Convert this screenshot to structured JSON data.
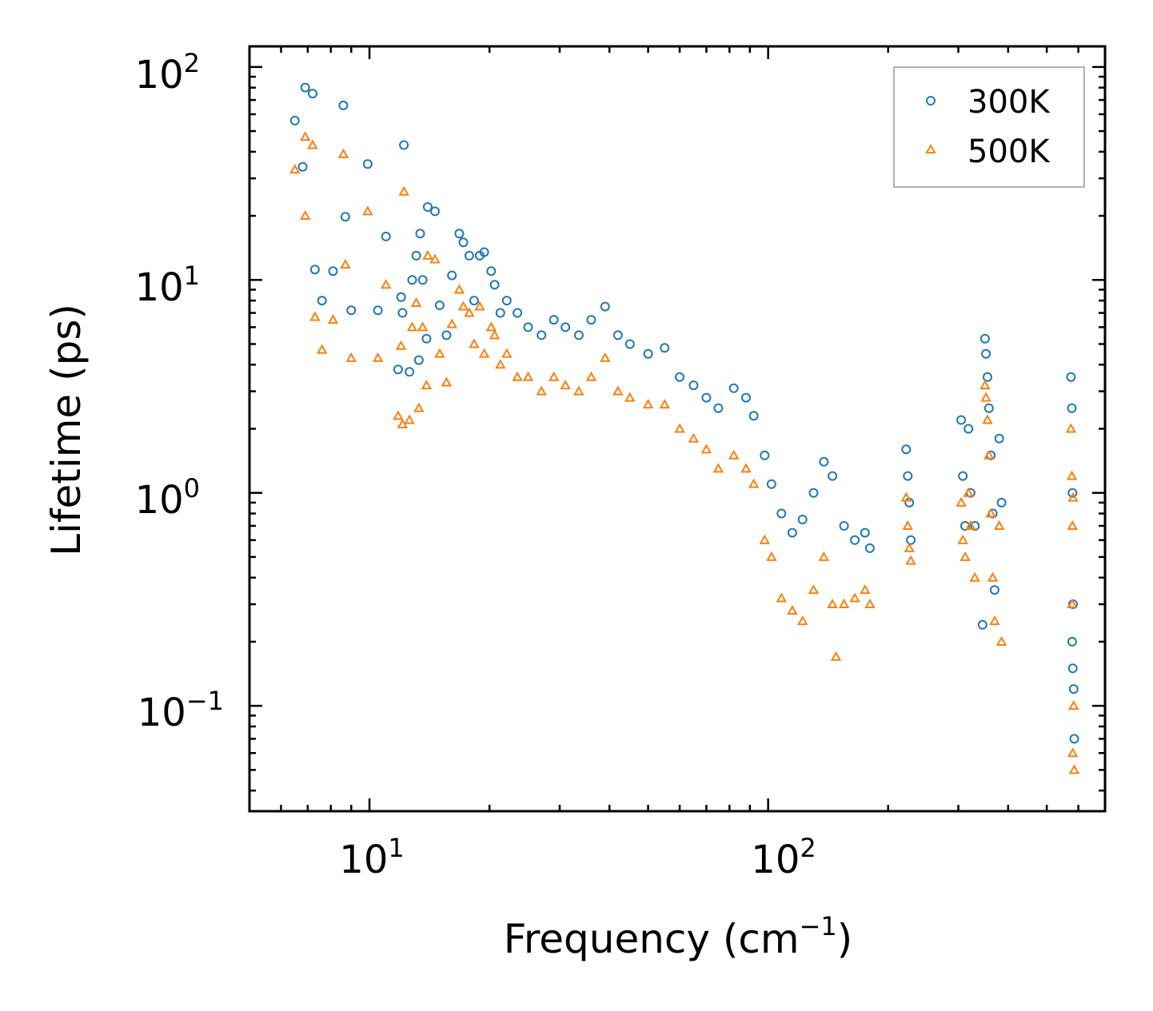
{
  "chart_data": {
    "type": "scatter",
    "xscale": "log",
    "yscale": "log",
    "xlabel_base": "Frequency (cm",
    "xlabel_sup": "−1",
    "xlabel_close": ")",
    "ylabel": "Lifetime (ps)",
    "xlim": [
      5,
      700
    ],
    "ylim": [
      0.032,
      125
    ],
    "xticks": [
      {
        "value": 10,
        "base": "10",
        "exp": "1"
      },
      {
        "value": 100,
        "base": "10",
        "exp": "2"
      }
    ],
    "yticks": [
      {
        "value": 100,
        "base": "10",
        "exp": "2"
      },
      {
        "value": 10,
        "base": "10",
        "exp": "1"
      },
      {
        "value": 1,
        "base": "10",
        "exp": "0"
      },
      {
        "value": 0.1,
        "base": "10",
        "exp": "−1"
      }
    ],
    "legend_position": "top-right",
    "series": [
      {
        "name": "300K",
        "marker": "circle",
        "color": "#1f77b4",
        "points": [
          [
            6.5,
            56
          ],
          [
            6.8,
            34
          ],
          [
            6.9,
            80
          ],
          [
            7.2,
            75
          ],
          [
            7.3,
            11.2
          ],
          [
            7.6,
            8.0
          ],
          [
            8.1,
            11.0
          ],
          [
            8.6,
            66
          ],
          [
            8.7,
            19.8
          ],
          [
            9.0,
            7.2
          ],
          [
            9.9,
            35
          ],
          [
            10.5,
            7.2
          ],
          [
            11.0,
            16.0
          ],
          [
            11.8,
            3.8
          ],
          [
            12.0,
            8.3
          ],
          [
            12.1,
            7.0
          ],
          [
            12.2,
            43
          ],
          [
            12.6,
            3.7
          ],
          [
            12.8,
            10.0
          ],
          [
            13.1,
            13.0
          ],
          [
            13.3,
            4.2
          ],
          [
            13.4,
            16.5
          ],
          [
            13.6,
            10.0
          ],
          [
            13.9,
            5.3
          ],
          [
            14.0,
            22
          ],
          [
            14.6,
            21
          ],
          [
            15.0,
            7.6
          ],
          [
            15.6,
            5.5
          ],
          [
            16.1,
            10.5
          ],
          [
            16.8,
            16.5
          ],
          [
            17.2,
            15.0
          ],
          [
            17.8,
            13.0
          ],
          [
            18.3,
            8.0
          ],
          [
            18.9,
            13.0
          ],
          [
            19.4,
            13.5
          ],
          [
            20.2,
            11.0
          ],
          [
            20.6,
            9.5
          ],
          [
            21.3,
            7.0
          ],
          [
            22.1,
            8.0
          ],
          [
            23.5,
            7.0
          ],
          [
            25.0,
            6.0
          ],
          [
            27.0,
            5.5
          ],
          [
            29.0,
            6.5
          ],
          [
            31.0,
            6.0
          ],
          [
            33.5,
            5.5
          ],
          [
            36.0,
            6.5
          ],
          [
            39.0,
            7.5
          ],
          [
            42.0,
            5.5
          ],
          [
            45.0,
            5.0
          ],
          [
            50.0,
            4.5
          ],
          [
            55.0,
            4.8
          ],
          [
            60.0,
            3.5
          ],
          [
            65.0,
            3.2
          ],
          [
            70.0,
            2.8
          ],
          [
            75.0,
            2.5
          ],
          [
            82.0,
            3.1
          ],
          [
            88.0,
            2.8
          ],
          [
            92.0,
            2.3
          ],
          [
            98.0,
            1.5
          ],
          [
            102.0,
            1.1
          ],
          [
            108.0,
            0.8
          ],
          [
            115.0,
            0.65
          ],
          [
            122.0,
            0.75
          ],
          [
            130.0,
            1.0
          ],
          [
            138.0,
            1.4
          ],
          [
            145.0,
            1.2
          ],
          [
            155.0,
            0.7
          ],
          [
            165.0,
            0.6
          ],
          [
            175.0,
            0.65
          ],
          [
            180.0,
            0.55
          ],
          [
            222.0,
            1.6
          ],
          [
            224.0,
            1.2
          ],
          [
            226.0,
            0.9
          ],
          [
            228.0,
            0.6
          ],
          [
            305.0,
            2.2
          ],
          [
            308.0,
            1.2
          ],
          [
            312.0,
            0.7
          ],
          [
            318.0,
            2.0
          ],
          [
            322.0,
            1.0
          ],
          [
            330.0,
            0.7
          ],
          [
            350.0,
            5.3
          ],
          [
            352.0,
            4.5
          ],
          [
            355.0,
            3.5
          ],
          [
            358.0,
            2.5
          ],
          [
            362.0,
            1.5
          ],
          [
            366.0,
            0.8
          ],
          [
            370.0,
            0.35
          ],
          [
            345.0,
            0.24
          ],
          [
            380.0,
            1.8
          ],
          [
            385.0,
            0.9
          ],
          [
            575.0,
            3.5
          ],
          [
            578.0,
            2.5
          ],
          [
            580.0,
            1.0
          ],
          [
            582.0,
            0.3
          ],
          [
            584.0,
            0.12
          ],
          [
            586.0,
            0.07
          ],
          [
            579.0,
            0.2
          ],
          [
            581.0,
            0.15
          ]
        ]
      },
      {
        "name": "500K",
        "marker": "triangle",
        "color": "#ff7f0e",
        "points": [
          [
            6.5,
            33
          ],
          [
            6.9,
            20
          ],
          [
            6.9,
            47
          ],
          [
            7.2,
            43
          ],
          [
            7.3,
            6.7
          ],
          [
            7.6,
            4.7
          ],
          [
            8.1,
            6.5
          ],
          [
            8.6,
            39
          ],
          [
            8.7,
            11.8
          ],
          [
            9.0,
            4.3
          ],
          [
            9.9,
            21
          ],
          [
            10.5,
            4.3
          ],
          [
            11.0,
            9.5
          ],
          [
            11.8,
            2.3
          ],
          [
            12.0,
            4.9
          ],
          [
            12.1,
            2.1
          ],
          [
            12.2,
            26
          ],
          [
            12.6,
            2.2
          ],
          [
            12.8,
            6.0
          ],
          [
            13.1,
            7.8
          ],
          [
            13.3,
            2.5
          ],
          [
            13.6,
            6.0
          ],
          [
            13.9,
            3.2
          ],
          [
            14.0,
            13.0
          ],
          [
            14.6,
            12.5
          ],
          [
            15.0,
            4.5
          ],
          [
            15.6,
            3.3
          ],
          [
            16.1,
            6.2
          ],
          [
            16.8,
            9.0
          ],
          [
            17.2,
            7.5
          ],
          [
            17.8,
            7.0
          ],
          [
            18.3,
            5.0
          ],
          [
            18.9,
            7.5
          ],
          [
            19.4,
            4.5
          ],
          [
            20.2,
            6.0
          ],
          [
            20.6,
            5.5
          ],
          [
            21.3,
            4.0
          ],
          [
            22.1,
            4.5
          ],
          [
            23.5,
            3.5
          ],
          [
            25.0,
            3.5
          ],
          [
            27.0,
            3.0
          ],
          [
            29.0,
            3.5
          ],
          [
            31.0,
            3.2
          ],
          [
            33.5,
            3.0
          ],
          [
            36.0,
            3.5
          ],
          [
            39.0,
            4.3
          ],
          [
            42.0,
            3.0
          ],
          [
            45.0,
            2.8
          ],
          [
            50.0,
            2.6
          ],
          [
            55.0,
            2.6
          ],
          [
            60.0,
            2.0
          ],
          [
            65.0,
            1.8
          ],
          [
            70.0,
            1.6
          ],
          [
            75.0,
            1.3
          ],
          [
            82.0,
            1.5
          ],
          [
            88.0,
            1.3
          ],
          [
            92.0,
            1.1
          ],
          [
            98.0,
            0.6
          ],
          [
            102.0,
            0.5
          ],
          [
            108.0,
            0.32
          ],
          [
            115.0,
            0.28
          ],
          [
            122.0,
            0.25
          ],
          [
            130.0,
            0.35
          ],
          [
            138.0,
            0.5
          ],
          [
            145.0,
            0.3
          ],
          [
            148.0,
            0.17
          ],
          [
            155.0,
            0.3
          ],
          [
            165.0,
            0.32
          ],
          [
            175.0,
            0.35
          ],
          [
            180.0,
            0.3
          ],
          [
            222.0,
            0.95
          ],
          [
            224.0,
            0.7
          ],
          [
            226.0,
            0.55
          ],
          [
            228.0,
            0.48
          ],
          [
            305.0,
            0.9
          ],
          [
            308.0,
            0.6
          ],
          [
            312.0,
            0.5
          ],
          [
            318.0,
            1.0
          ],
          [
            322.0,
            0.7
          ],
          [
            330.0,
            0.4
          ],
          [
            350.0,
            3.2
          ],
          [
            352.0,
            2.8
          ],
          [
            355.0,
            2.2
          ],
          [
            358.0,
            1.5
          ],
          [
            362.0,
            0.8
          ],
          [
            366.0,
            0.4
          ],
          [
            370.0,
            0.25
          ],
          [
            380.0,
            0.7
          ],
          [
            385.0,
            0.2
          ],
          [
            575.0,
            2.0
          ],
          [
            578.0,
            1.2
          ],
          [
            580.0,
            0.7
          ],
          [
            582.0,
            0.95
          ],
          [
            584.0,
            0.1
          ],
          [
            586.0,
            0.05
          ],
          [
            579.0,
            0.3
          ],
          [
            581.0,
            0.06
          ]
        ]
      }
    ]
  }
}
